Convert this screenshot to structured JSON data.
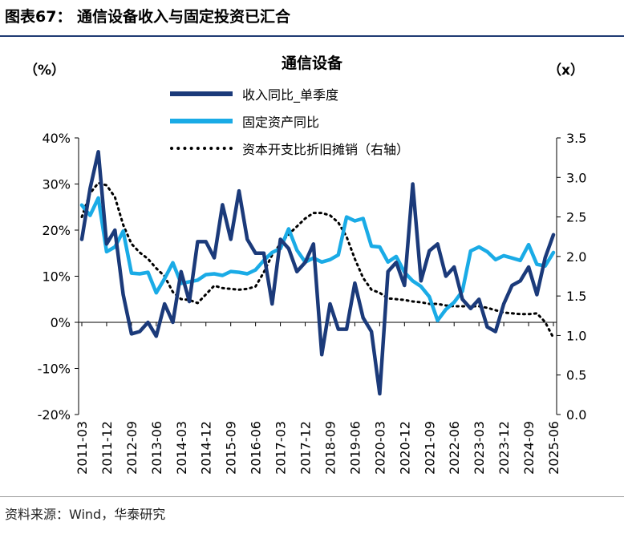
{
  "figure_title": "图表67：  通信设备收入与固定投资已汇合",
  "source": "资料来源：Wind，华泰研究",
  "colors": {
    "revenue": "#1b3a7a",
    "capex": "#1aabe6",
    "ratio": "#000000",
    "rule": "#1f3b73"
  },
  "chart_data": {
    "type": "line",
    "title": "通信设备",
    "left_unit": "（%）",
    "right_unit": "（x）",
    "legend": [
      "收入同比_单季度",
      "固定资产同比",
      "资本开支比折旧摊销（右轴）"
    ],
    "x_tick_labels": [
      "2011-03",
      "2011-12",
      "2012-09",
      "2013-06",
      "2014-03",
      "2014-12",
      "2015-09",
      "2016-06",
      "2017-03",
      "2017-12",
      "2018-09",
      "2019-06",
      "2020-03",
      "2020-12",
      "2021-09",
      "2022-06",
      "2023-03",
      "2023-12",
      "2024-09",
      "2025-06"
    ],
    "y_left_ticks": [
      "40%",
      "30%",
      "20%",
      "10%",
      "0%",
      "-10%",
      "-20%"
    ],
    "y_right_ticks": [
      "3.5",
      "3.0",
      "2.5",
      "2.0",
      "1.5",
      "1.0",
      "0.5",
      "0.0"
    ],
    "ylim_left": [
      -20,
      40
    ],
    "ylim_right": [
      0,
      3.5
    ],
    "series": [
      {
        "name": "收入同比_单季度",
        "axis": "left",
        "values": [
          18,
          29,
          37,
          17,
          20,
          6,
          -2.5,
          -2,
          0,
          -3,
          4,
          0,
          11,
          4.5,
          17.5,
          17.5,
          14,
          25.5,
          18,
          28.5,
          18,
          15,
          15,
          4,
          18,
          16,
          11,
          13,
          17,
          -7,
          4,
          -1.5,
          -1.5,
          8.5,
          1,
          -2,
          -15.5,
          11,
          13,
          8,
          30,
          9,
          15.5,
          17,
          10,
          12,
          5,
          3,
          5,
          -1,
          -2,
          4,
          8,
          9,
          12,
          6,
          14,
          19
        ]
      },
      {
        "name": "固定资产同比",
        "axis": "right",
        "values": [
          2.65,
          2.52,
          2.74,
          2.06,
          2.12,
          2.32,
          1.79,
          1.78,
          1.8,
          1.54,
          1.72,
          1.92,
          1.66,
          1.68,
          1.7,
          1.77,
          1.78,
          1.76,
          1.81,
          1.8,
          1.78,
          1.83,
          1.95,
          2.05,
          2.1,
          2.35,
          2.08,
          1.93,
          1.98,
          1.93,
          1.96,
          2.02,
          2.5,
          2.45,
          2.48,
          2.13,
          2.12,
          1.93,
          2.0,
          1.8,
          1.69,
          1.62,
          1.49,
          1.19,
          1.33,
          1.42,
          1.56,
          2.07,
          2.12,
          2.06,
          1.96,
          2.01,
          1.98,
          1.95,
          2.15,
          1.9,
          1.88,
          2.05
        ]
      },
      {
        "name": "资本开支比折旧摊销（右轴）",
        "axis": "right",
        "values": [
          2.5,
          2.8,
          2.93,
          2.9,
          2.75,
          2.4,
          2.16,
          2.05,
          1.97,
          1.85,
          1.75,
          1.55,
          1.46,
          1.45,
          1.41,
          1.52,
          1.63,
          1.6,
          1.59,
          1.58,
          1.59,
          1.62,
          1.8,
          2.02,
          2.16,
          2.28,
          2.38,
          2.48,
          2.55,
          2.55,
          2.52,
          2.43,
          2.25,
          1.97,
          1.73,
          1.58,
          1.54,
          1.47,
          1.46,
          1.45,
          1.43,
          1.42,
          1.4,
          1.4,
          1.38,
          1.37,
          1.37,
          1.37,
          1.37,
          1.35,
          1.32,
          1.29,
          1.28,
          1.27,
          1.27,
          1.28,
          1.17,
          0.97
        ]
      }
    ]
  }
}
